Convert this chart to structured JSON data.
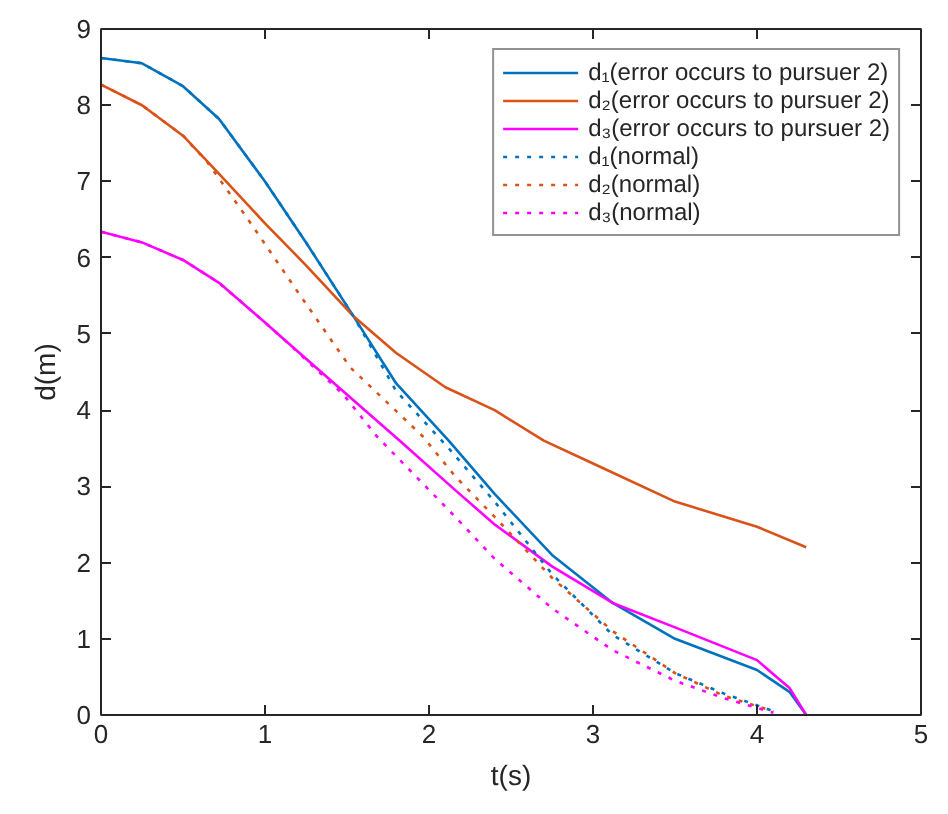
{
  "chart_data": {
    "type": "line",
    "xlabel": "t(s)",
    "ylabel": "d(m)",
    "xlim": [
      0,
      5
    ],
    "ylim": [
      0,
      9
    ],
    "xticks": [
      0,
      1,
      2,
      3,
      4,
      5
    ],
    "yticks": [
      0,
      1,
      2,
      3,
      4,
      5,
      6,
      7,
      8,
      9
    ],
    "grid": false,
    "legend": "top right",
    "marker": "none",
    "series": [
      {
        "name": "d₁(error occurs to pursuer 2)",
        "color": "#0072bd",
        "line_style": "solid",
        "x": [
          0,
          0.25,
          0.5,
          0.72,
          1.0,
          1.25,
          1.54,
          1.8,
          2.12,
          2.4,
          2.75,
          3.12,
          3.5,
          4.0,
          4.2,
          4.3
        ],
        "values": [
          8.62,
          8.55,
          8.25,
          7.82,
          7.0,
          6.2,
          5.23,
          4.35,
          3.6,
          2.9,
          2.1,
          1.47,
          1.0,
          0.59,
          0.3,
          0
        ]
      },
      {
        "name": "d₂(error occurs to pursuer 2)",
        "color": "#d95319",
        "line_style": "solid",
        "x": [
          0,
          0.25,
          0.5,
          0.72,
          1.0,
          1.25,
          1.54,
          1.8,
          2.1,
          2.4,
          2.7,
          3.0,
          3.5,
          4.0,
          4.3
        ],
        "values": [
          8.27,
          8.0,
          7.6,
          7.1,
          6.45,
          5.9,
          5.23,
          4.75,
          4.3,
          4.0,
          3.6,
          3.3,
          2.8,
          2.47,
          2.2
        ]
      },
      {
        "name": "d₃(error occurs to pursuer 2)",
        "color": "#ff00ff",
        "line_style": "solid",
        "x": [
          0,
          0.25,
          0.5,
          0.72,
          1.0,
          1.12,
          1.48,
          1.82,
          2.16,
          2.4,
          2.75,
          3.12,
          3.5,
          4.0,
          4.2,
          4.3
        ],
        "values": [
          6.34,
          6.2,
          5.97,
          5.67,
          5.15,
          4.92,
          4.24,
          3.6,
          2.95,
          2.5,
          1.95,
          1.47,
          1.15,
          0.72,
          0.35,
          0
        ]
      },
      {
        "name": "d₁(normal)",
        "color": "#0072bd",
        "line_style": "dotted",
        "x": [
          0,
          0.25,
          0.5,
          0.72,
          1.0,
          1.25,
          1.54,
          1.8,
          2.12,
          2.4,
          2.75,
          3.12,
          3.5,
          3.8,
          4.1
        ],
        "values": [
          8.62,
          8.55,
          8.25,
          7.82,
          7.0,
          6.2,
          5.23,
          4.25,
          3.5,
          2.8,
          1.85,
          1.05,
          0.55,
          0.28,
          0.05
        ]
      },
      {
        "name": "d₂(normal)",
        "color": "#d95319",
        "line_style": "dotted",
        "x": [
          0,
          0.25,
          0.5,
          0.65,
          0.92,
          1.2,
          1.52,
          1.96,
          2.16,
          2.4,
          2.75,
          3.12,
          3.5,
          3.8,
          4.1
        ],
        "values": [
          8.27,
          8.0,
          7.6,
          7.25,
          6.43,
          5.55,
          4.56,
          3.66,
          3.13,
          2.6,
          1.8,
          1.1,
          0.55,
          0.25,
          0.05
        ]
      },
      {
        "name": "d₃(normal)",
        "color": "#ff00ff",
        "line_style": "dotted",
        "x": [
          0,
          0.25,
          0.5,
          0.72,
          1.0,
          1.12,
          1.48,
          1.68,
          2.16,
          2.4,
          2.75,
          3.12,
          3.5,
          3.8,
          4.1
        ],
        "values": [
          6.34,
          6.2,
          5.97,
          5.67,
          5.15,
          4.92,
          4.2,
          3.66,
          2.6,
          2.05,
          1.4,
          0.85,
          0.45,
          0.22,
          0.03
        ]
      }
    ]
  }
}
